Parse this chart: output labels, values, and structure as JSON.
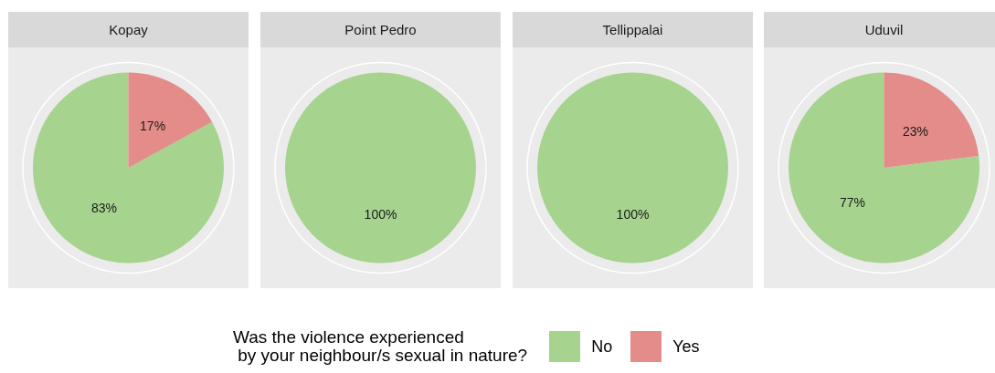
{
  "chart_data": [
    {
      "type": "pie",
      "title": "Kopay",
      "categories": [
        "No",
        "Yes"
      ],
      "values": [
        83,
        17
      ],
      "colors": [
        "#a6d38e",
        "#e38c8a"
      ],
      "value_labels": [
        "83%",
        "17%"
      ],
      "legend": "bottom",
      "legend_title": "Was the violence experienced\n by your neighbour/s sexual in nature?"
    },
    {
      "type": "pie",
      "title": "Point Pedro",
      "categories": [
        null,
        null
      ],
      "values": [
        100,
        0
      ],
      "colors": [
        "#a6d38e",
        "#e38c8a"
      ],
      "value_labels": [
        "100%",
        null
      ]
    },
    {
      "type": "pie",
      "title": "Tellippalai",
      "categories": [
        null,
        null
      ],
      "values": [
        100,
        0
      ],
      "colors": [
        "#a6d38e",
        "#e38c8a"
      ],
      "value_labels": [
        "100%",
        null
      ]
    },
    {
      "type": "pie",
      "title": "Uduvil",
      "categories": [
        null,
        null
      ],
      "values": [
        77,
        23
      ],
      "colors": [
        "#a6d38e",
        "#e38c8a"
      ],
      "value_labels": [
        "77%",
        "23%"
      ]
    }
  ]
}
